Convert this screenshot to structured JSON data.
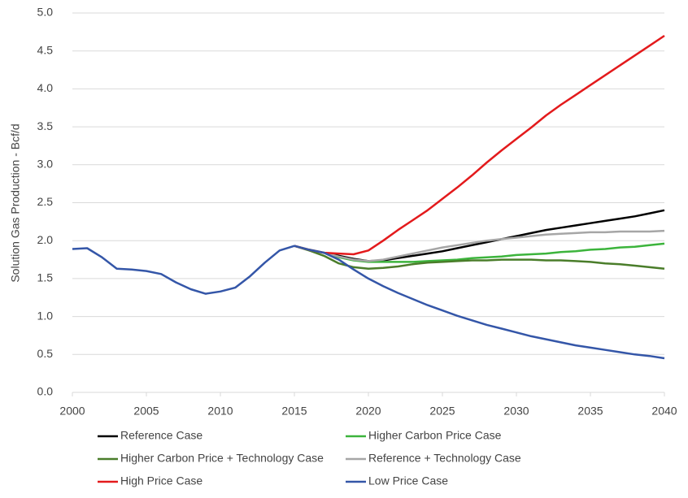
{
  "chart_data": {
    "type": "line",
    "y_label": "Solution Gas Production - Bcf/d",
    "x": [
      2000,
      2001,
      2002,
      2003,
      2004,
      2005,
      2006,
      2007,
      2008,
      2009,
      2010,
      2011,
      2012,
      2013,
      2014,
      2015,
      2016,
      2017,
      2018,
      2019,
      2020,
      2021,
      2022,
      2023,
      2024,
      2025,
      2026,
      2027,
      2028,
      2029,
      2030,
      2031,
      2032,
      2033,
      2034,
      2035,
      2036,
      2037,
      2038,
      2039,
      2040
    ],
    "xlim": [
      2000,
      2040
    ],
    "xticks": [
      2000,
      2005,
      2010,
      2015,
      2020,
      2025,
      2030,
      2035,
      2040
    ],
    "ylim": [
      0,
      5
    ],
    "yticks": [
      {
        "value": 0,
        "label": "0.0"
      },
      {
        "value": 0.5,
        "label": "0.5"
      },
      {
        "value": 1,
        "label": "1.0"
      },
      {
        "value": 1.5,
        "label": "1.5"
      },
      {
        "value": 2,
        "label": "2.0"
      },
      {
        "value": 2.5,
        "label": "2.5"
      },
      {
        "value": 3,
        "label": "3.0"
      },
      {
        "value": 3.5,
        "label": "3.5"
      },
      {
        "value": 4,
        "label": "4.0"
      },
      {
        "value": 4.5,
        "label": "4.5"
      },
      {
        "value": 5,
        "label": "5.0"
      }
    ],
    "grid": true,
    "legend": "bottom",
    "series": [
      {
        "name": "Reference Case",
        "color": "#000000",
        "values": [
          null,
          null,
          null,
          null,
          null,
          null,
          null,
          null,
          null,
          null,
          null,
          null,
          null,
          null,
          null,
          1.93,
          1.88,
          1.84,
          1.8,
          1.76,
          1.73,
          1.74,
          1.77,
          1.8,
          1.83,
          1.86,
          1.9,
          1.94,
          1.98,
          2.02,
          2.06,
          2.1,
          2.14,
          2.17,
          2.2,
          2.23,
          2.26,
          2.29,
          2.32,
          2.36,
          2.4
        ]
      },
      {
        "name": "Higher Carbon Price Case",
        "color": "#3cb43c",
        "values": [
          null,
          null,
          null,
          null,
          null,
          null,
          null,
          null,
          null,
          null,
          null,
          null,
          null,
          null,
          null,
          1.93,
          1.88,
          1.84,
          1.78,
          1.74,
          1.72,
          1.72,
          1.72,
          1.72,
          1.73,
          1.74,
          1.75,
          1.77,
          1.78,
          1.79,
          1.81,
          1.82,
          1.83,
          1.85,
          1.86,
          1.88,
          1.89,
          1.91,
          1.92,
          1.94,
          1.96
        ]
      },
      {
        "name": "Higher Carbon Price + Technology Case",
        "color": "#4a7d2a",
        "values": [
          null,
          null,
          null,
          null,
          null,
          null,
          null,
          null,
          null,
          null,
          null,
          null,
          null,
          null,
          null,
          1.93,
          1.87,
          1.8,
          1.7,
          1.65,
          1.63,
          1.64,
          1.66,
          1.69,
          1.71,
          1.72,
          1.73,
          1.74,
          1.74,
          1.75,
          1.75,
          1.75,
          1.74,
          1.74,
          1.73,
          1.72,
          1.7,
          1.69,
          1.67,
          1.65,
          1.63
        ]
      },
      {
        "name": "Reference + Technology Case",
        "color": "#a6a6a6",
        "values": [
          null,
          null,
          null,
          null,
          null,
          null,
          null,
          null,
          null,
          null,
          null,
          null,
          null,
          null,
          null,
          1.93,
          1.88,
          1.84,
          1.79,
          1.75,
          1.73,
          1.75,
          1.79,
          1.83,
          1.87,
          1.91,
          1.94,
          1.97,
          2.0,
          2.02,
          2.04,
          2.06,
          2.08,
          2.09,
          2.1,
          2.11,
          2.11,
          2.12,
          2.12,
          2.12,
          2.13
        ]
      },
      {
        "name": "High Price Case",
        "color": "#e31a1c",
        "values": [
          null,
          null,
          null,
          null,
          null,
          null,
          null,
          null,
          null,
          null,
          null,
          null,
          null,
          null,
          null,
          1.93,
          1.88,
          1.84,
          1.83,
          1.82,
          1.87,
          2.0,
          2.14,
          2.27,
          2.4,
          2.55,
          2.7,
          2.86,
          3.03,
          3.19,
          3.34,
          3.49,
          3.65,
          3.79,
          3.92,
          4.05,
          4.18,
          4.31,
          4.44,
          4.57,
          4.7
        ]
      },
      {
        "name": "Low Price Case",
        "color": "#3456a8",
        "values": [
          1.89,
          1.9,
          1.78,
          1.63,
          1.62,
          1.6,
          1.56,
          1.45,
          1.36,
          1.3,
          1.33,
          1.38,
          1.53,
          1.71,
          1.87,
          1.93,
          1.88,
          1.84,
          1.75,
          1.62,
          1.5,
          1.4,
          1.31,
          1.23,
          1.15,
          1.08,
          1.01,
          0.95,
          0.89,
          0.84,
          0.79,
          0.74,
          0.7,
          0.66,
          0.62,
          0.59,
          0.56,
          0.53,
          0.5,
          0.48,
          0.45
        ]
      }
    ]
  }
}
